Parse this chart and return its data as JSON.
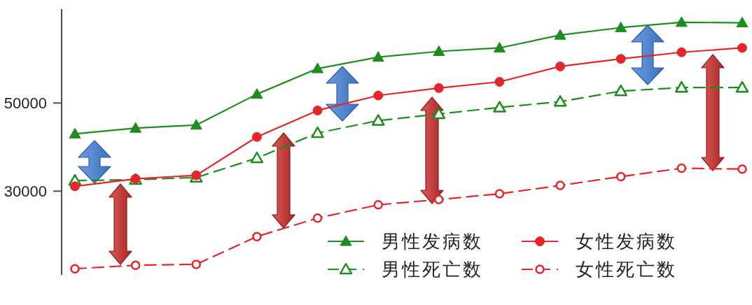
{
  "chart_data": {
    "type": "line",
    "categories": [
      null,
      null,
      null,
      null,
      null,
      null,
      null,
      null,
      null,
      null,
      null,
      null
    ],
    "series": [
      {
        "name": "男性发病数",
        "color": "#1e8c1e",
        "marker": "triangle",
        "line_style": "solid",
        "values": [
          43000,
          44300,
          45000,
          52000,
          57800,
          60400,
          61700,
          62500,
          65400,
          67100,
          68300,
          68200
        ]
      },
      {
        "name": "男性死亡数",
        "color": "#1e8c1e",
        "marker": "triangle",
        "line_style": "dashed",
        "values": [
          32400,
          32600,
          33100,
          37500,
          43200,
          46000,
          47500,
          49000,
          50300,
          52700,
          53500,
          53500
        ]
      },
      {
        "name": "女性发病数",
        "color": "#e3262b",
        "marker": "circle",
        "line_style": "solid",
        "values": [
          31100,
          32800,
          33600,
          42300,
          48300,
          51700,
          53400,
          54800,
          58300,
          60000,
          61500,
          62500
        ]
      },
      {
        "name": "女性死亡数",
        "color": "#e3262b",
        "marker": "circle",
        "line_style": "dashed",
        "values": [
          12400,
          13200,
          13400,
          19700,
          23900,
          26900,
          28100,
          29400,
          31300,
          33300,
          35200,
          35000
        ]
      }
    ],
    "ylim": [
      11000,
      71300
    ],
    "yticks": [
      30000,
      50000
    ],
    "legend": "bottom right"
  }
}
